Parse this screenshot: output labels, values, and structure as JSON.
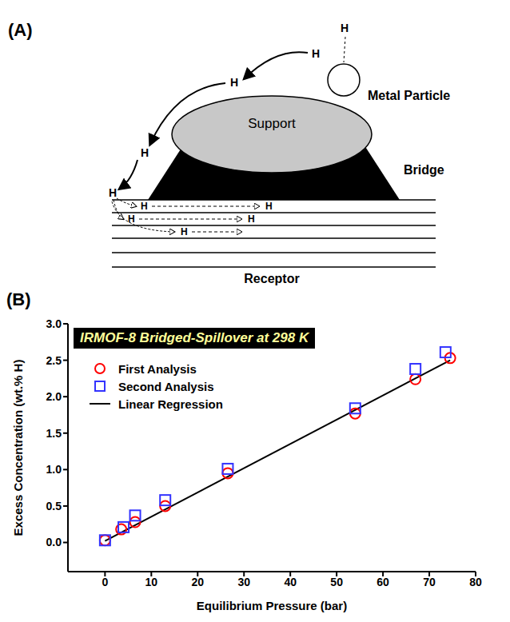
{
  "diagram": {
    "panel_label": "(A)",
    "labels": {
      "metal_particle": "Metal Particle",
      "support": "Support",
      "bridge": "Bridge",
      "receptor": "Receptor"
    },
    "hydrogen": [
      "H",
      "H",
      "H",
      "H",
      "H",
      "H",
      "H",
      "H",
      "H",
      "H"
    ]
  },
  "chart_data": {
    "type": "scatter",
    "panel_label": "(B)",
    "title": "IRMOF-8 Bridged-Spillover at 298 K",
    "x_label": "Equilibrium Pressure (bar)",
    "y_label": "Excess Concentration (wt.% H)",
    "xlim": [
      -8,
      80
    ],
    "xticks": [
      0,
      10,
      20,
      30,
      40,
      50,
      60,
      70,
      80
    ],
    "ylim": [
      -0.4,
      3.0
    ],
    "yticks": [
      {
        "value": 0,
        "label": "0.0"
      },
      0.5,
      {
        "value": 1,
        "label": "1.0"
      },
      1.5,
      {
        "value": 2,
        "label": "2.0"
      },
      2.5,
      {
        "value": 3,
        "label": "3.0"
      }
    ],
    "grid": false,
    "legend": "upper left",
    "series": [
      {
        "name": "First Analysis",
        "type": "scatter",
        "marker": "circle",
        "color": "#ff0000",
        "x": [
          0,
          3.5,
          6.5,
          13,
          26.5,
          54,
          67,
          74.5
        ],
        "values": [
          0.03,
          0.18,
          0.28,
          0.5,
          0.95,
          1.77,
          2.24,
          2.53
        ]
      },
      {
        "name": "Second Analysis",
        "type": "scatter",
        "marker": "square",
        "color": "#3333ff",
        "x": [
          0,
          4,
          6.5,
          13,
          26.5,
          54,
          67,
          73.5
        ],
        "values": [
          0.03,
          0.21,
          0.37,
          0.58,
          1.01,
          1.84,
          2.38,
          2.61
        ]
      },
      {
        "name": "Linear Regression",
        "type": "line",
        "line_style": "solid",
        "color": "#000000",
        "x": [
          0,
          74.5
        ],
        "values": [
          0.02,
          2.5
        ]
      }
    ]
  }
}
